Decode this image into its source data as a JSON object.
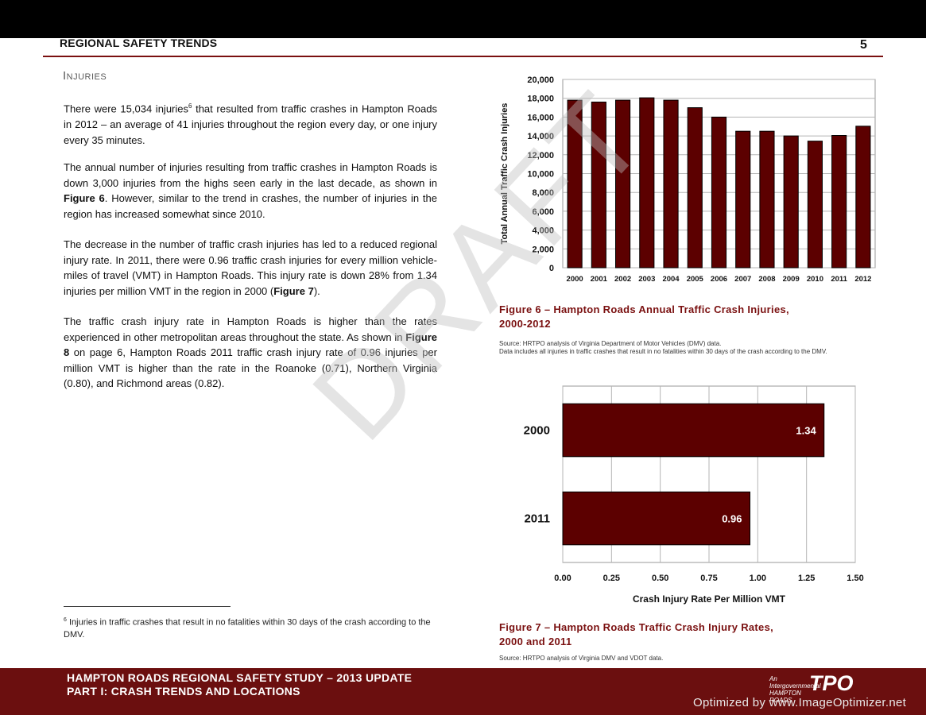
{
  "header": {
    "title": "REGIONAL SAFETY TRENDS",
    "page_number": "5"
  },
  "section_heading": "Injuries",
  "paragraphs": {
    "p1_a": "There were 15,034 injuries",
    "p1_sup": "6",
    "p1_b": " that resulted from traffic crashes in Hampton Roads in 2012 – an average of 41 injuries throughout the region every day, or one injury every 35 minutes.",
    "p2_a": "The annual number of injuries resulting from traffic crashes in Hampton Roads is down 3,000 injuries from the highs seen early in the last decade, as shown in ",
    "p2_ref": "Figure 6",
    "p2_b": ".  However, similar to the trend in crashes, the number of injuries in the region has increased somewhat since 2010.",
    "p3_a": "The decrease in the number of traffic crash injuries has led to a reduced regional injury rate.  In 2011, there were 0.96 traffic crash injuries for every million vehicle-miles of travel (VMT) in Hampton Roads.  This injury rate is down 28% from 1.34 injuries per million VMT in the region in 2000 (",
    "p3_ref": "Figure 7",
    "p3_b": ").",
    "p4_a": "The traffic crash injury rate in Hampton Roads is higher than the rates experienced in other metropolitan areas throughout the state.  As shown in ",
    "p4_ref": "Figure 8",
    "p4_b": " on page 6, Hampton Roads 2011 traffic crash injury rate of 0.96 injuries per million VMT is higher than the rate in the Roanoke (0.71), Northern Virginia (0.80), and Richmond areas (0.82)."
  },
  "footnote": {
    "number": "6",
    "text": " Injuries in traffic crashes that result in no fatalities within 30 days of the crash according to the DMV."
  },
  "watermark_draft": "DRAFT",
  "figure6": {
    "caption_line1": "Figure 6 – Hampton Roads Annual Traffic Crash Injuries,",
    "caption_line2": "2000-2012",
    "source_line1": "Source:  HRTPO analysis of Virginia Department of Motor Vehicles (DMV) data.",
    "source_line2": "Data includes all injuries in traffic crashes that result in no fatalities within 30 days of the crash according to the DMV."
  },
  "figure7": {
    "caption_line1": "Figure 7 – Hampton Roads Traffic Crash Injury Rates,",
    "caption_line2": "2000 and 2011",
    "source_line1": "Source:  HRTPO analysis of Virginia DMV and VDOT data."
  },
  "footer": {
    "line1": "HAMPTON ROADS REGIONAL SAFETY STUDY – 2013 UPDATE",
    "line2": "PART I: CRASH TRENDS AND LOCATIONS",
    "logo_small": "An Intergovernmental HAMPTON ROADS",
    "logo_tpo": "TPO",
    "watermark": "Optimized by www.ImageOptimizer.net"
  },
  "colors": {
    "bar": "#5c0000",
    "accent": "#7a1010",
    "footer_bg": "#6b0f0f"
  },
  "chart_data": [
    {
      "type": "bar",
      "title": "",
      "xlabel": "",
      "ylabel": "Total Annual Traffic Crash Injuries",
      "categories": [
        "2000",
        "2001",
        "2002",
        "2003",
        "2004",
        "2005",
        "2006",
        "2007",
        "2008",
        "2009",
        "2010",
        "2011",
        "2012"
      ],
      "values": [
        17800,
        17600,
        17800,
        18050,
        17800,
        17000,
        16000,
        14500,
        14500,
        14000,
        13450,
        14050,
        15034
      ],
      "ylim": [
        0,
        20000
      ],
      "yticks": [
        "0",
        "2,000",
        "4,000",
        "6,000",
        "8,000",
        "10,000",
        "12,000",
        "14,000",
        "16,000",
        "18,000",
        "20,000"
      ],
      "grid": true,
      "legend": "none"
    },
    {
      "type": "bar",
      "orientation": "horizontal",
      "title": "",
      "xlabel": "Crash Injury Rate Per Million VMT",
      "ylabel": "",
      "categories": [
        "2000",
        "2011"
      ],
      "values": [
        1.34,
        0.96
      ],
      "value_labels": [
        "1.34",
        "0.96"
      ],
      "xlim": [
        0,
        1.5
      ],
      "xticks": [
        "0.00",
        "0.25",
        "0.50",
        "0.75",
        "1.00",
        "1.25",
        "1.50"
      ],
      "grid": true,
      "legend": "none"
    }
  ]
}
